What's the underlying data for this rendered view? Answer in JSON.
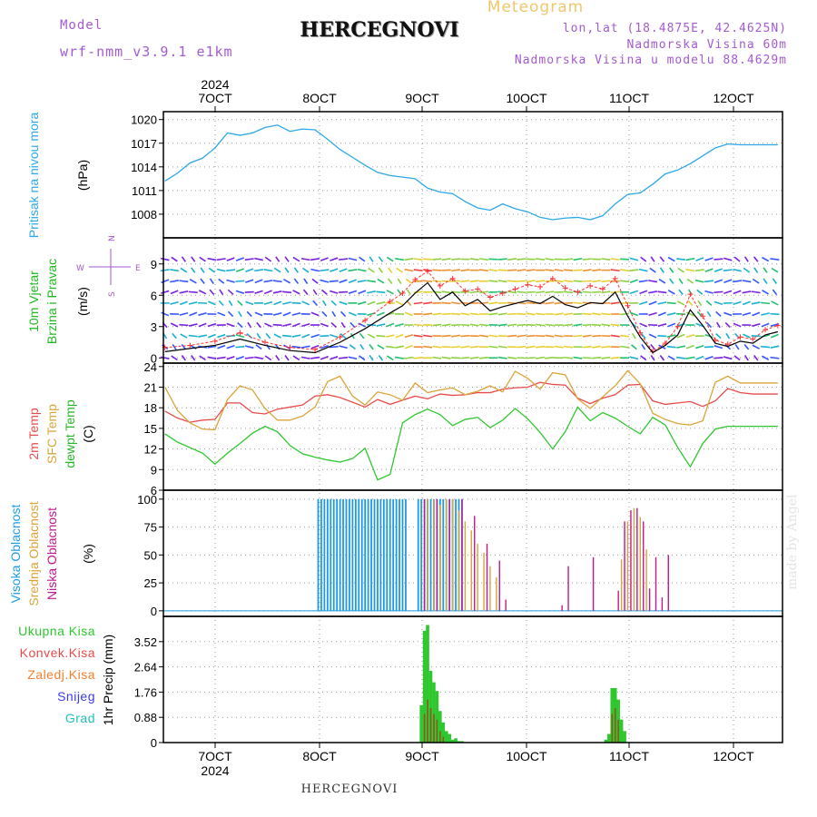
{
  "header": {
    "title": "HERCEGNOVI",
    "subtitle": "Meteogram",
    "model_label": "Model",
    "model_value": "wrf-nmm_v3.9.1 e1km",
    "lonlat": "lon,lat (18.4875E, 42.4625N)",
    "elevation": "Nadmorska Visina 60m",
    "model_elevation": "Nadmorska Visina u modelu 88.4629m"
  },
  "footer": {
    "title": "HERCEGNOVI",
    "credit": "made by Angel"
  },
  "x_axis": {
    "year": "2024",
    "tick_labels": [
      "7OCT",
      "8OCT",
      "9OCT",
      "10OCT",
      "11OCT",
      "12OCT"
    ]
  },
  "colors": {
    "pressure": "#2ca8e8",
    "temp2m": "#e84b4b",
    "sfc_temp": "#d9a43a",
    "dewpoint": "#2ec82e",
    "wind_speed": "#000000",
    "wind_gust": "#ff3030",
    "high_cloud": "#1e9be0",
    "mid_cloud": "#d9a43a",
    "low_cloud": "#c0188a",
    "total_precip": "#2ec82e",
    "conv_precip": "#e84b4b",
    "frozen_precip": "#f08030",
    "snow": "#3a3ae8",
    "hail": "#20c0c0"
  },
  "chart_data": [
    {
      "type": "line",
      "ylabel_main": "Pritisak na nivou mora",
      "ylabel_unit": "(hPa)",
      "ylim": [
        1005,
        1021
      ],
      "yticks": [
        "1008",
        "1011",
        "1014",
        "1017",
        "1020"
      ],
      "x": [
        0,
        4,
        8,
        12,
        16,
        20,
        24,
        28,
        32,
        36,
        40,
        44,
        48,
        52,
        56,
        60,
        64,
        68,
        72,
        76,
        80,
        84,
        88,
        92,
        96,
        100,
        104,
        108,
        112,
        116,
        120,
        124,
        128,
        132,
        136,
        140,
        144,
        148,
        152,
        156,
        160,
        164,
        168,
        172,
        176,
        180,
        184,
        188,
        192,
        196
      ],
      "series": [
        {
          "values": [
            1012.2,
            1013.2,
            1014.5,
            1015.1,
            1016.4,
            1018.3,
            1018.0,
            1018.3,
            1019.0,
            1019.3,
            1018.5,
            1018.8,
            1018.7,
            1017.5,
            1016.2,
            1015.2,
            1014.2,
            1013.3,
            1012.9,
            1012.7,
            1012.5,
            1011.3,
            1010.8,
            1010.6,
            1009.6,
            1008.8,
            1008.5,
            1009.3,
            1008.7,
            1008.3,
            1007.6,
            1007.3,
            1007.5,
            1007.6,
            1007.3,
            1007.8,
            1009.3,
            1010.5,
            1010.7,
            1011.8,
            1013.1,
            1013.6,
            1014.4,
            1015.4,
            1016.4,
            1016.9,
            1016.8,
            1016.8,
            1016.8,
            1016.8
          ]
        }
      ]
    },
    {
      "type": "line",
      "ylabel_main": "10m Vjetar",
      "ylabel_main2": "Brzina i Pravac",
      "ylabel_unit": "(m/s)",
      "compass": {
        "n": "N",
        "s": "S",
        "w": "W",
        "e": "E"
      },
      "ylim": [
        -0.5,
        11.5
      ],
      "yticks": [
        "0",
        "3",
        "6",
        "9"
      ],
      "x": [
        0,
        8,
        16,
        24,
        32,
        40,
        48,
        56,
        64,
        72,
        76,
        80,
        84,
        88,
        92,
        96,
        100,
        104,
        108,
        112,
        116,
        120,
        124,
        128,
        132,
        136,
        140,
        144,
        148,
        152,
        156,
        160,
        164,
        168,
        172,
        176,
        180,
        184,
        188,
        192,
        196
      ],
      "series": [
        {
          "name": "speed",
          "values": [
            0.6,
            0.9,
            1.2,
            1.8,
            1.2,
            0.7,
            0.5,
            1.5,
            2.8,
            4.3,
            5.0,
            6.2,
            7.2,
            5.6,
            6.3,
            5.0,
            5.6,
            4.5,
            4.9,
            5.2,
            5.5,
            5.2,
            5.9,
            5.1,
            4.8,
            5.3,
            5.2,
            6.3,
            4.0,
            2.0,
            0.5,
            1.2,
            2.2,
            4.6,
            3.1,
            1.4,
            1.1,
            1.6,
            1.4,
            2.2,
            2.5
          ]
        },
        {
          "name": "gust",
          "values": [
            1.0,
            1.2,
            1.6,
            2.4,
            1.5,
            1.0,
            0.8,
            2.0,
            3.6,
            5.4,
            6.2,
            7.5,
            8.3,
            6.9,
            7.6,
            6.4,
            6.6,
            5.8,
            6.2,
            6.6,
            7.0,
            6.8,
            7.6,
            6.7,
            6.3,
            6.9,
            6.6,
            7.6,
            5.0,
            2.4,
            0.6,
            1.4,
            3.0,
            6.1,
            4.0,
            1.7,
            1.3,
            2.0,
            1.8,
            2.7,
            3.1
          ]
        }
      ]
    },
    {
      "type": "line",
      "ylabel_main": "2m Temp",
      "ylabel_main2": "SFC Temp",
      "ylabel_main3": "dewpt Temp",
      "ylabel_unit": "(C)",
      "ylim": [
        6,
        24.5
      ],
      "yticks": [
        "6",
        "9",
        "12",
        "15",
        "18",
        "21",
        "24"
      ],
      "x": [
        0,
        4,
        8,
        12,
        16,
        20,
        24,
        28,
        32,
        36,
        40,
        44,
        48,
        52,
        56,
        60,
        64,
        68,
        72,
        76,
        80,
        84,
        88,
        92,
        96,
        100,
        104,
        108,
        112,
        116,
        120,
        124,
        128,
        132,
        136,
        140,
        144,
        148,
        152,
        156,
        160,
        164,
        168,
        172,
        176,
        180,
        184,
        188,
        192,
        196
      ],
      "series": [
        {
          "name": "2m",
          "values": [
            17.5,
            16.5,
            15.9,
            16.2,
            16.3,
            18.7,
            18.7,
            17.3,
            17.1,
            17.8,
            18.1,
            18.4,
            19.7,
            19.9,
            19.5,
            18.8,
            18.1,
            19.2,
            18.5,
            19.1,
            19.7,
            19.3,
            20.0,
            19.8,
            19.9,
            20.2,
            20.2,
            20.7,
            20.9,
            21.0,
            21.7,
            21.4,
            21.3,
            19.4,
            18.6,
            19.4,
            19.9,
            21.3,
            21.4,
            19.0,
            18.5,
            18.7,
            18.9,
            18.2,
            19.0,
            20.8,
            20.2,
            20.0,
            20.0,
            20.0
          ]
        },
        {
          "name": "sfc",
          "values": [
            21.0,
            17.6,
            15.8,
            14.9,
            14.8,
            19.2,
            21.2,
            20.6,
            17.9,
            16.2,
            16.2,
            16.8,
            18.1,
            21.8,
            22.6,
            19.7,
            18.4,
            20.3,
            19.9,
            19.1,
            21.6,
            20.2,
            20.6,
            20.9,
            19.9,
            20.4,
            21.2,
            20.3,
            23.3,
            22.3,
            20.7,
            23.1,
            22.8,
            19.3,
            17.9,
            19.6,
            21.2,
            23.4,
            21.5,
            17.2,
            16.3,
            15.7,
            15.5,
            16.1,
            21.7,
            22.6,
            21.6,
            21.6,
            21.6,
            21.6
          ]
        },
        {
          "name": "dewpt",
          "values": [
            14.2,
            13.0,
            12.2,
            11.4,
            9.8,
            11.4,
            12.8,
            14.3,
            15.3,
            14.5,
            12.5,
            11.3,
            10.8,
            10.4,
            10.1,
            10.6,
            12.1,
            7.5,
            8.3,
            15.8,
            17.0,
            17.8,
            17.0,
            15.4,
            16.3,
            16.6,
            15.1,
            16.2,
            17.9,
            16.4,
            14.4,
            12.0,
            14.5,
            18.1,
            16.1,
            17.3,
            16.5,
            15.3,
            14.2,
            16.6,
            15.5,
            12.2,
            9.4,
            12.8,
            14.9,
            15.3,
            15.3,
            15.3,
            15.3,
            15.3
          ]
        }
      ]
    },
    {
      "type": "bar",
      "ylabel_main": "Visoka Oblacnost",
      "ylabel_main2": "Srednja Oblacnost",
      "ylabel_main3": "Niska Oblacnost",
      "ylabel_unit": "(%)",
      "ylim": [
        -5,
        108
      ],
      "yticks": [
        "0",
        "25",
        "50",
        "75",
        "100"
      ],
      "series": [
        {
          "name": "high",
          "x": [
            49,
            50,
            51,
            52,
            53,
            54,
            55,
            56,
            57,
            58,
            59,
            60,
            61,
            62,
            63,
            64,
            65,
            66,
            67,
            68,
            69,
            70,
            71,
            72,
            73,
            74,
            75,
            76,
            77
          ],
          "values": [
            100,
            100,
            100,
            100,
            100,
            100,
            100,
            100,
            100,
            100,
            100,
            100,
            100,
            100,
            100,
            100,
            100,
            100,
            100,
            100,
            100,
            100,
            100,
            100,
            100,
            100,
            100,
            100,
            100
          ]
        },
        {
          "name": "high2",
          "x": [
            81,
            82,
            83,
            84,
            85,
            86,
            87,
            88,
            89,
            90,
            91,
            92,
            93,
            94,
            95
          ],
          "values": [
            100,
            100,
            100,
            100,
            100,
            100,
            100,
            100,
            100,
            100,
            100,
            100,
            100,
            100,
            100
          ]
        },
        {
          "name": "mid",
          "x": [
            84,
            86,
            88,
            90,
            92,
            94,
            96,
            98,
            100,
            102,
            104,
            106,
            146,
            148,
            150,
            152,
            154
          ],
          "values": [
            100,
            100,
            95,
            100,
            100,
            90,
            80,
            72,
            60,
            52,
            40,
            30,
            46,
            80,
            92,
            84,
            55
          ]
        },
        {
          "name": "low",
          "x": [
            83,
            87,
            91,
            95,
            99,
            103,
            107,
            109,
            127,
            129,
            137,
            145,
            147,
            149,
            151,
            153,
            155,
            157,
            159,
            161
          ],
          "values": [
            100,
            100,
            100,
            100,
            85,
            60,
            45,
            10,
            5,
            40,
            48,
            18,
            80,
            90,
            92,
            80,
            20,
            48,
            12,
            50
          ]
        }
      ]
    },
    {
      "type": "bar",
      "legend": [
        "Ukupna Kisa",
        "Konvek.Kisa",
        "Zaledj.Kisa",
        "Snijeg",
        "Grad"
      ],
      "ylabel_main": "1hr Precip (mm)",
      "ylim": [
        0,
        4.4
      ],
      "yticks": [
        "0",
        "0.88",
        "1.76",
        "2.64",
        "3.52"
      ],
      "series": [
        {
          "name": "total",
          "x": [
            82,
            83,
            84,
            85,
            86,
            87,
            88,
            89,
            90,
            91,
            92,
            93,
            94,
            95,
            141,
            142,
            143,
            144,
            145,
            146,
            147
          ],
          "values": [
            1.3,
            3.9,
            4.1,
            2.5,
            2.1,
            1.8,
            1.1,
            0.7,
            0.4,
            0.3,
            0.1,
            0.15,
            0.05,
            0.05,
            0.1,
            0.3,
            1.9,
            1.9,
            1.5,
            0.8,
            0.4
          ]
        },
        {
          "name": "convective",
          "x": [
            83,
            84,
            85,
            86,
            87,
            88,
            89,
            143,
            144,
            145
          ],
          "values": [
            1.0,
            1.5,
            1.2,
            1.0,
            0.8,
            0.4,
            0.2,
            1.0,
            1.2,
            0.8
          ]
        }
      ]
    }
  ]
}
